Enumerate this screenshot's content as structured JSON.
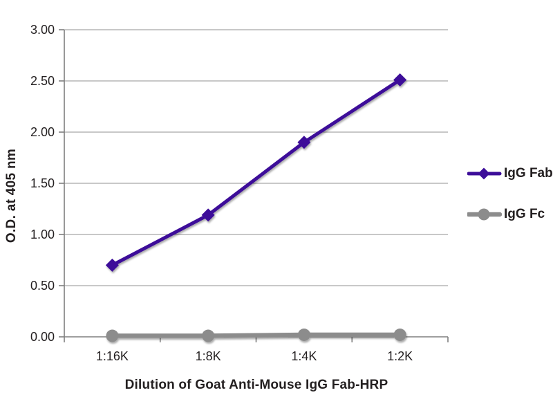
{
  "chart_data": {
    "type": "line",
    "title": "",
    "categories": [
      "1:16K",
      "1:8K",
      "1:4K",
      "1:2K"
    ],
    "series": [
      {
        "name": "IgG Fab",
        "marker": "diamond",
        "color": "#3C0D99",
        "values": [
          0.7,
          1.19,
          1.9,
          2.51
        ]
      },
      {
        "name": "IgG Fc",
        "marker": "circle",
        "color": "#8C8C8C",
        "values": [
          0.01,
          0.01,
          0.02,
          0.02
        ]
      }
    ],
    "xlabel": "Dilution of Goat Anti-Mouse IgG Fab-HRP",
    "ylabel": "O.D. at 405 nm",
    "ylim": [
      0,
      3
    ],
    "ytick_step": 0.5,
    "ytick_labels": [
      "0.00",
      "0.50",
      "1.00",
      "1.50",
      "2.00",
      "2.50",
      "3.00"
    ],
    "grid": true,
    "grid_color": "#A6A6A6",
    "axis_color": "#7F7F7F",
    "text_color": "#231f20",
    "legend_position": "right"
  }
}
